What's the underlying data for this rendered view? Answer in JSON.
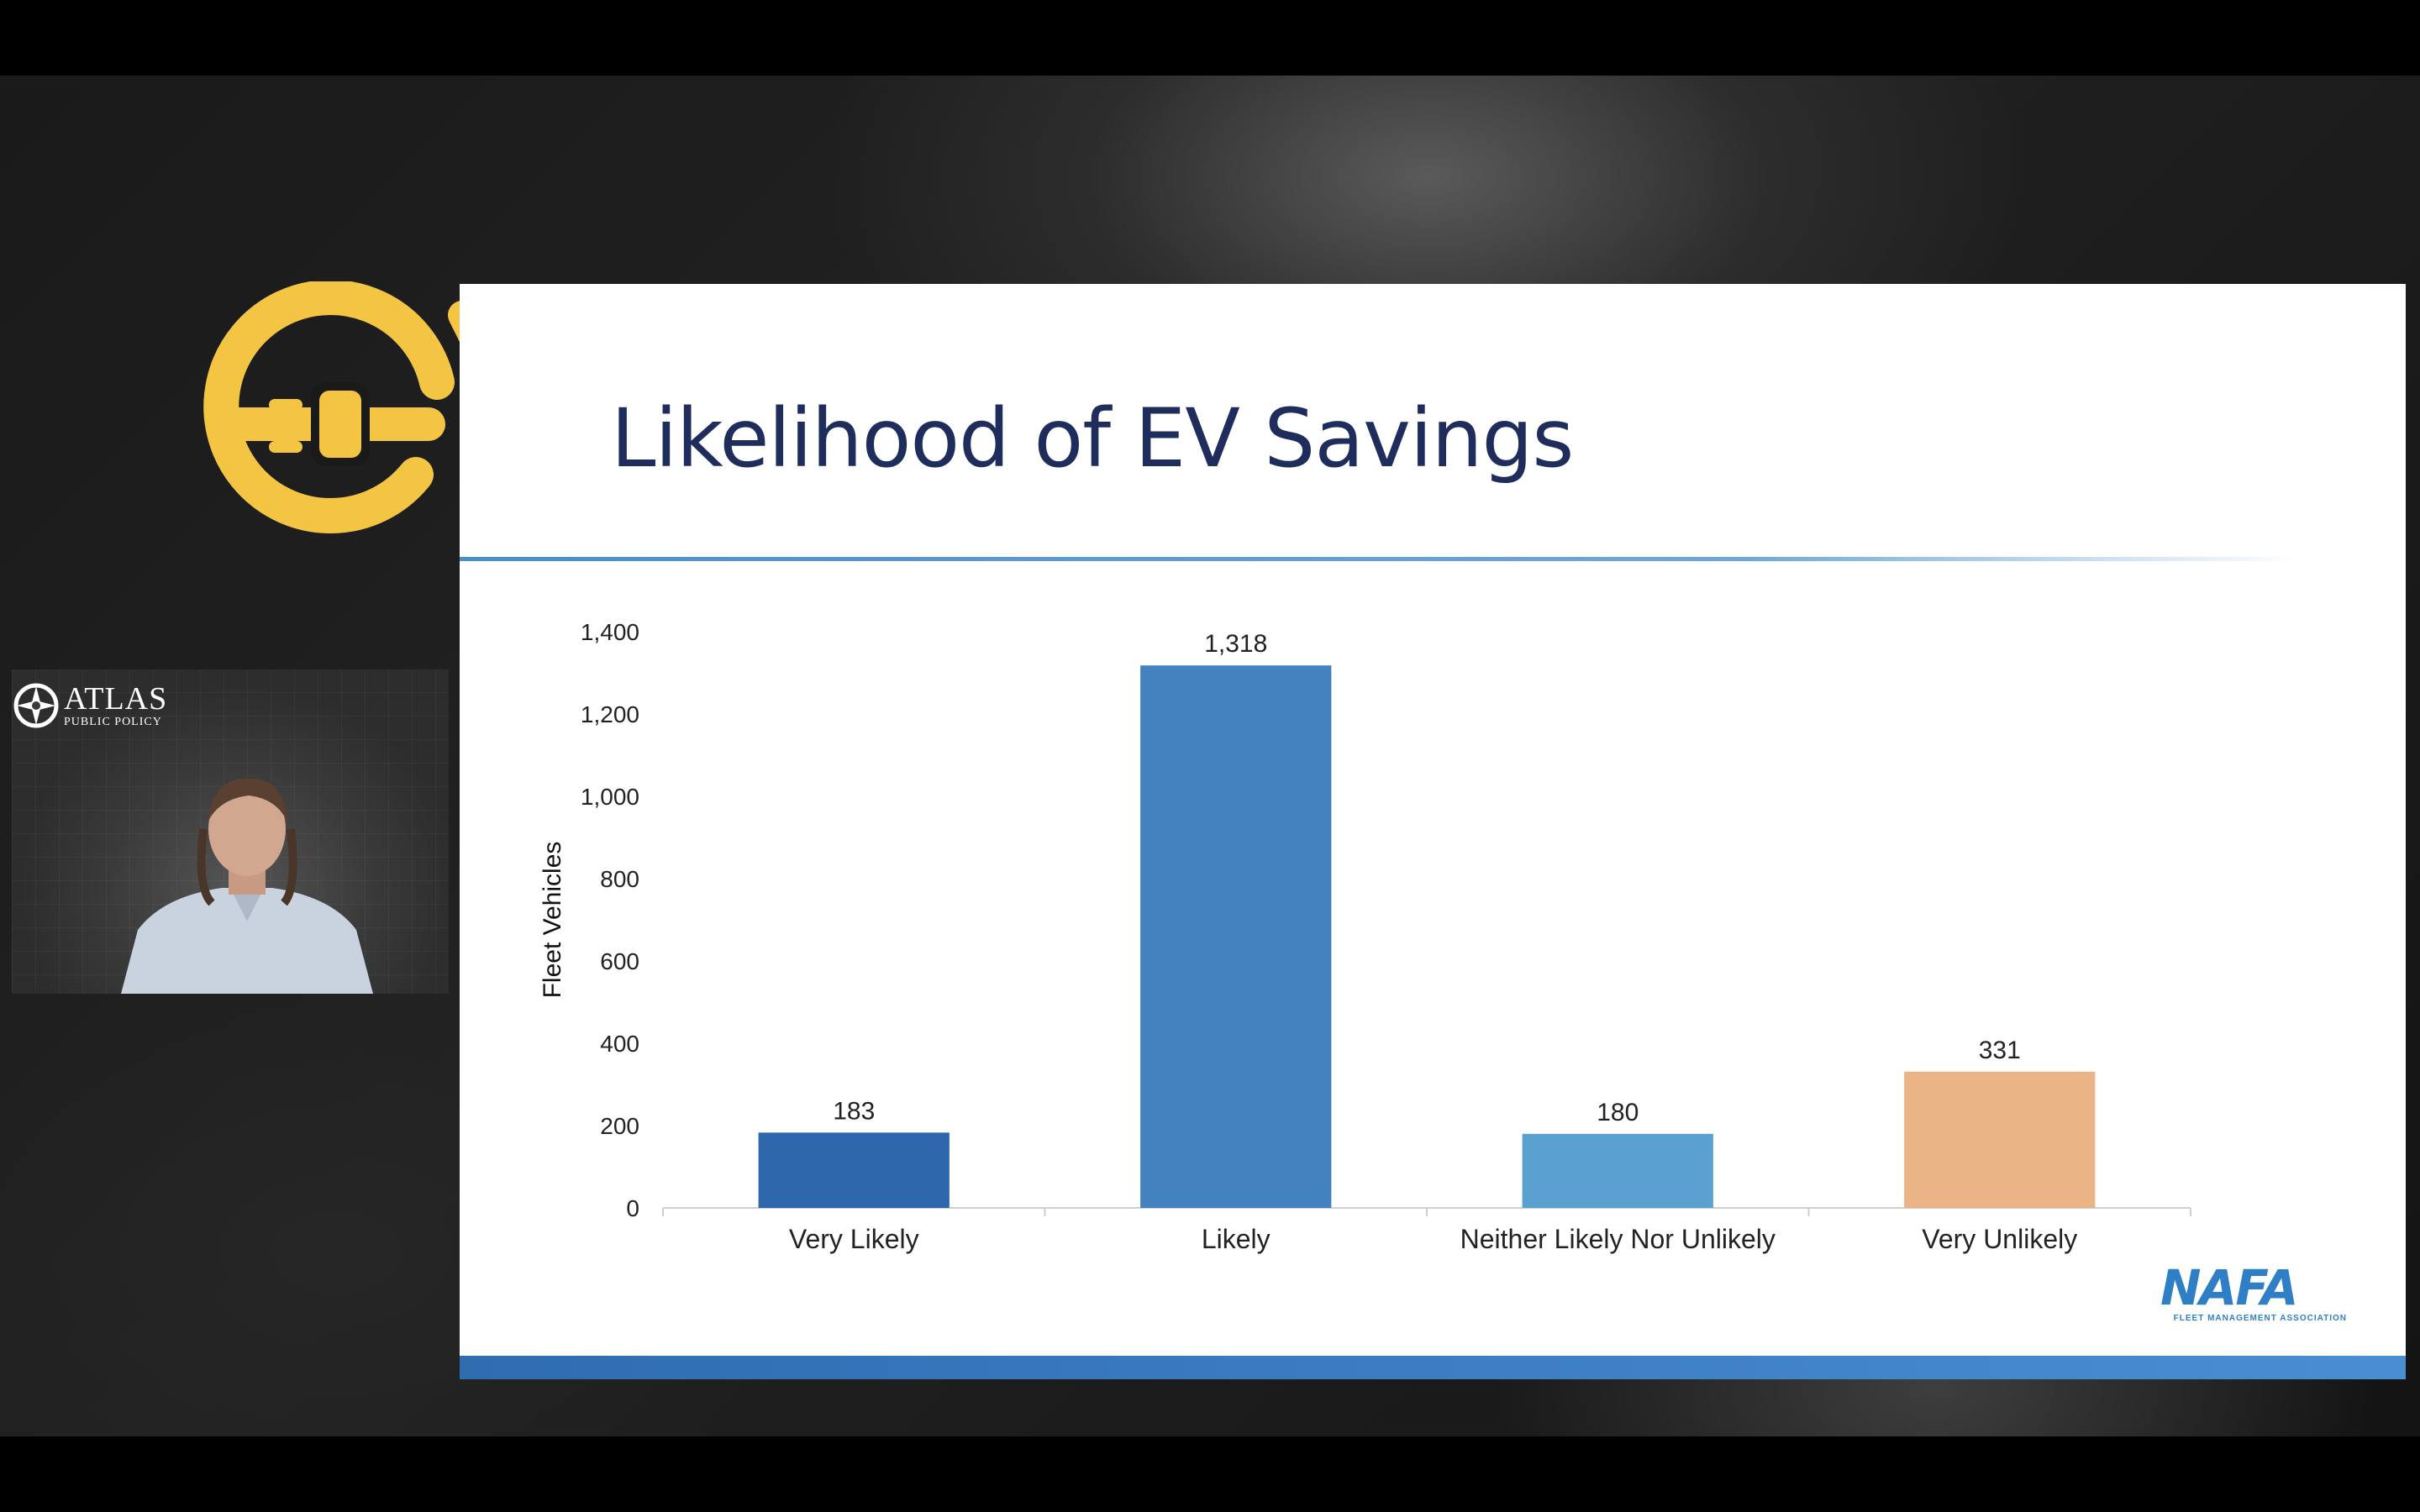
{
  "slide": {
    "title": "Likelihood of EV Savings",
    "brand_logo": "NAFA",
    "brand_tagline": "FLEET MANAGEMENT ASSOCIATION"
  },
  "webcam": {
    "org_name": "ATLAS",
    "org_sub": "PUBLIC POLICY"
  },
  "event_logo": {
    "icon": "ev-plug-logo-icon",
    "color": "#f4c542"
  },
  "chart_data": {
    "type": "bar",
    "title": "Likelihood of EV Savings",
    "xlabel": "",
    "ylabel": "Fleet Vehicles",
    "categories": [
      "Very Likely",
      "Likely",
      "Neither Likely Nor Unlikely",
      "Very Unlikely"
    ],
    "values": [
      183,
      1318,
      180,
      331
    ],
    "value_labels": [
      "183",
      "1,318",
      "180",
      "331"
    ],
    "colors": [
      "#2e67ab",
      "#4382be",
      "#5aa0d0",
      "#eab486"
    ],
    "ylim": [
      0,
      1400
    ],
    "yticks": [
      0,
      200,
      400,
      600,
      800,
      1000,
      1200,
      1400
    ],
    "ytick_labels": [
      "0",
      "200",
      "400",
      "600",
      "800",
      "1,000",
      "1,200",
      "1,400"
    ],
    "grid": false,
    "legend": "none"
  }
}
